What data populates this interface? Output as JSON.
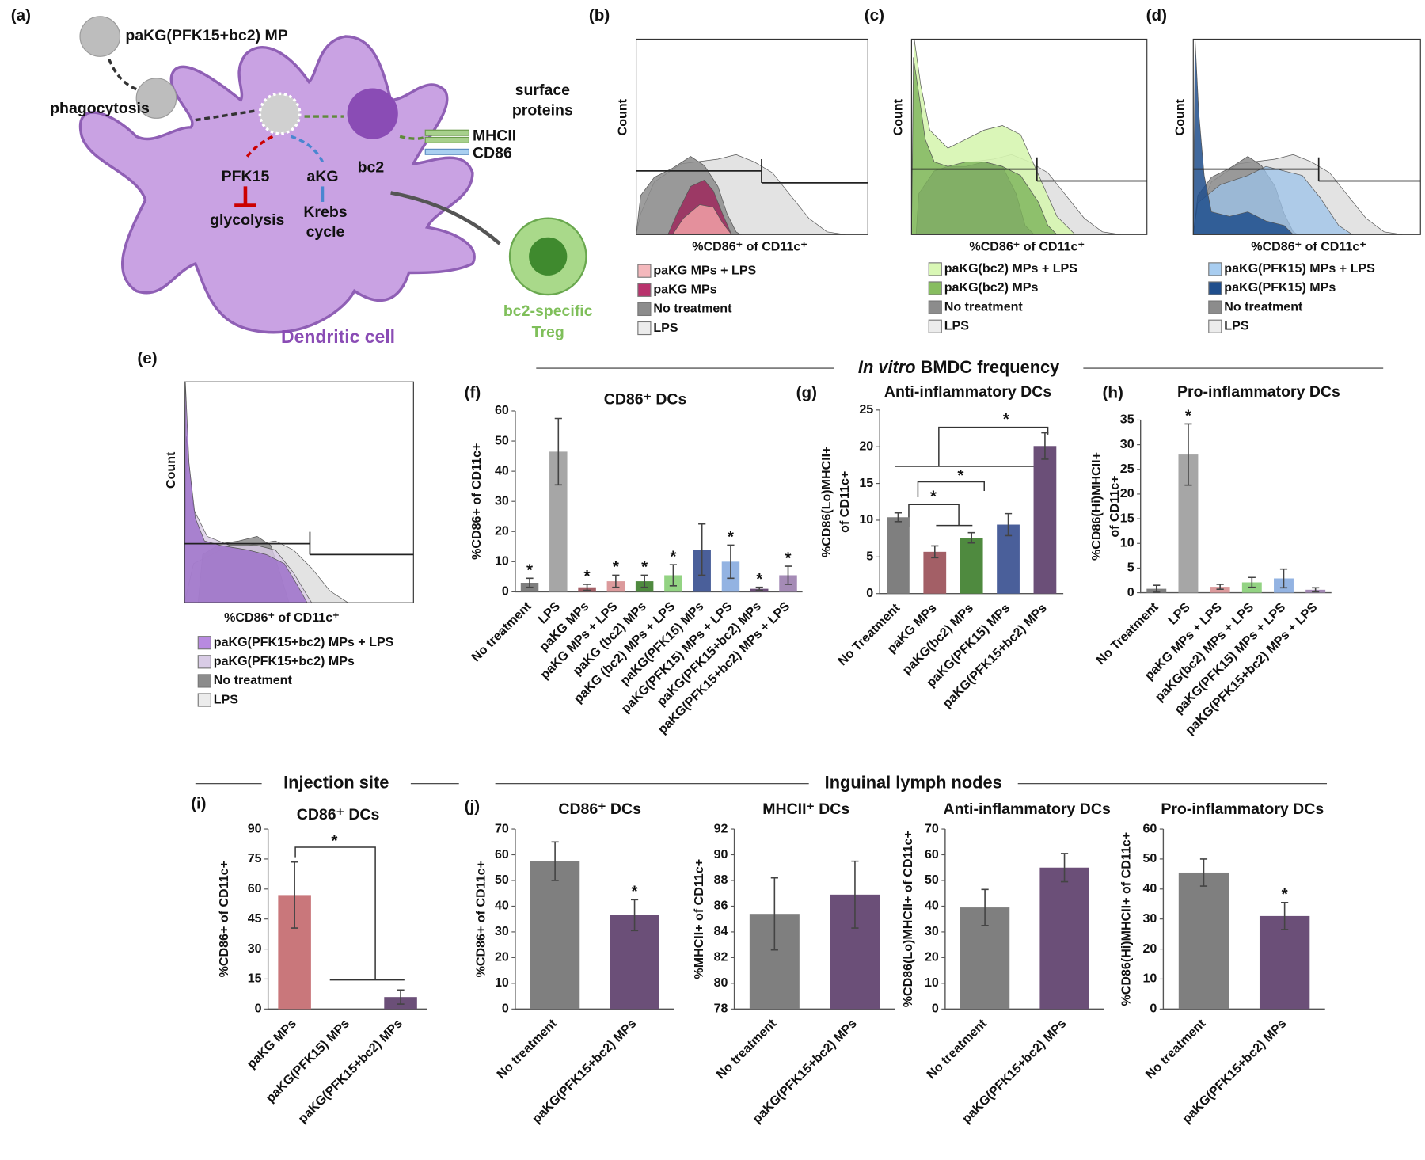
{
  "diagram": {
    "panel_label": "(a)",
    "particle": "paKG(PFK15+bc2) MP",
    "uptake": "phagocytosis",
    "surface": [
      "surface",
      "proteins"
    ],
    "markers": [
      "MHCII",
      "CD86"
    ],
    "cargo": "bc2",
    "inhibitor": "PFK15",
    "metabolite": "aKG",
    "pathway": "glycolysis",
    "cycle": [
      "Krebs",
      "cycle"
    ],
    "treg": [
      "bc2-specific",
      "Treg"
    ],
    "cell": "Dendritic cell"
  },
  "histograms": [
    {
      "panel_label": "(b)",
      "ylabel": "Count",
      "xlabel": "%CD86⁺ of CD11c⁺",
      "legend": [
        "paKG MPs + LPS",
        "paKG MPs",
        "No treatment",
        "LPS"
      ]
    },
    {
      "panel_label": "(c)",
      "ylabel": "Count",
      "xlabel": "%CD86⁺ of CD11c⁺",
      "legend": [
        "paKG(bc2) MPs + LPS",
        "paKG(bc2) MPs",
        "No treatment",
        "LPS"
      ]
    },
    {
      "panel_label": "(d)",
      "ylabel": "Count",
      "xlabel": "%CD86⁺ of CD11c⁺",
      "legend": [
        "paKG(PFK15) MPs + LPS",
        "paKG(PFK15) MPs",
        "No treatment",
        "LPS"
      ]
    },
    {
      "panel_label": "(e)",
      "ylabel": "Count",
      "xlabel": "%CD86⁺ of CD11c⁺",
      "legend": [
        "paKG(PFK15+bc2) MPs + LPS",
        "paKG(PFK15+bc2) MPs",
        "No treatment",
        "LPS"
      ]
    }
  ],
  "headers": {
    "in_vitro": {
      "italic": "In vitro",
      "text": "BMDC frequency"
    },
    "injection_site": "Injection site",
    "lymph_nodes": "Inguinal lymph nodes"
  },
  "chart_data": [
    {
      "type": "bar",
      "panel_label": "(f)",
      "title": "CD86⁺ DCs",
      "ylabel": "%CD86+ of CD11c+",
      "categories": [
        "No treatment",
        "LPS",
        "paKG MPs",
        "paKG MPs + LPS",
        "paKG (bc2) MPs",
        "paKG (bc2) MPs + LPS",
        "paKG(PFK15) MPs",
        "paKG(PFK15) MPs + LPS",
        "paKG(PFK15+bc2) MPs",
        "paKG(PFK15+bc2) MPs + LPS"
      ],
      "values": [
        3,
        46.5,
        1.5,
        3.5,
        3.5,
        5.5,
        14,
        10,
        1,
        5.5
      ],
      "errors": [
        1.5,
        11,
        1,
        2,
        2,
        3.5,
        8.5,
        5.5,
        0.5,
        3
      ],
      "colors": [
        "#7f7f7f",
        "#a6a6a6",
        "#a35f66",
        "#dc9a9c",
        "#4f8a3f",
        "#93d383",
        "#4a5f9a",
        "#93b3e2",
        "#6b4f78",
        "#a58bb6"
      ],
      "markers": [
        "*",
        null,
        "*",
        "*",
        "*",
        "*",
        null,
        "*",
        "*",
        "*"
      ],
      "ylim": [
        0,
        60
      ],
      "yticks": [
        0,
        10,
        20,
        30,
        40,
        50,
        60
      ]
    },
    {
      "type": "bar",
      "panel_label": "(g)",
      "title": "Anti-inflammatory DCs",
      "ylabel": [
        "%CD86(Lo)MHCII+",
        "of CD11c+"
      ],
      "categories": [
        "No Treatment",
        "paKG MPs",
        "paKG(bc2) MPs",
        "paKG(PFK15) MPs",
        "paKG(PFK15+bc2) MPs"
      ],
      "values": [
        10.4,
        5.7,
        7.6,
        9.4,
        20.1
      ],
      "errors": [
        0.6,
        0.8,
        0.7,
        1.5,
        1.8
      ],
      "colors": [
        "#7f7f7f",
        "#a35f66",
        "#4f8a3f",
        "#4a5f9a",
        "#6b4f78"
      ],
      "annotations": [
        "*",
        "*",
        "*"
      ],
      "ylim": [
        0,
        25
      ],
      "yticks": [
        0,
        5,
        10,
        15,
        20,
        25
      ]
    },
    {
      "type": "bar",
      "panel_label": "(h)",
      "title": "Pro-inflammatory DCs",
      "ylabel": [
        "%CD86(Hi)MHCII+",
        "of CD11c+"
      ],
      "categories": [
        "No Treatment",
        "LPS",
        "paKG MPs + LPS",
        "paKG(bc2) MPs + LPS",
        "paKG(PFK15) MPs + LPS",
        "paKG(PFK15+bc2) MPs + LPS"
      ],
      "values": [
        0.8,
        28,
        1.2,
        2.1,
        2.9,
        0.6
      ],
      "errors": [
        0.7,
        6.2,
        0.5,
        1,
        1.9,
        0.4
      ],
      "colors": [
        "#7f7f7f",
        "#a6a6a6",
        "#dc9a9c",
        "#93d383",
        "#93b3e2",
        "#a58bb6"
      ],
      "markers": [
        null,
        "*",
        null,
        null,
        null,
        null
      ],
      "ylim": [
        0,
        35
      ],
      "yticks": [
        0,
        5,
        10,
        15,
        20,
        25,
        30,
        35
      ]
    },
    {
      "type": "bar",
      "panel_label": "(i)",
      "title": "CD86⁺ DCs",
      "ylabel": "%CD86+ of CD11c+",
      "categories": [
        "paKG MPs",
        "paKG(PFK15) MPs",
        "paKG(PFK15+bc2) MPs"
      ],
      "values": [
        57,
        0,
        6
      ],
      "errors": [
        16.5,
        null,
        3.5
      ],
      "colors": [
        "#c9777b",
        "#c9777b",
        "#6b4f78"
      ],
      "annotations": [
        "*"
      ],
      "ylim": [
        0,
        90
      ],
      "yticks": [
        0,
        15,
        30,
        45,
        60,
        75,
        90
      ]
    },
    {
      "type": "bar",
      "panel_label": "(j)",
      "title": "CD86⁺ DCs",
      "ylabel": "%CD86+ of CD11c+",
      "categories": [
        "No treatment",
        "paKG(PFK15+bc2) MPs"
      ],
      "values": [
        57.5,
        36.5
      ],
      "errors": [
        7.5,
        6
      ],
      "colors": [
        "#7f7f7f",
        "#6b4f78"
      ],
      "markers": [
        null,
        "*"
      ],
      "ylim": [
        0,
        70
      ],
      "yticks": [
        0,
        10,
        20,
        30,
        40,
        50,
        60,
        70
      ]
    },
    {
      "type": "bar",
      "title": "MHCII⁺ DCs",
      "ylabel": "%MHCII+ of CD11c+",
      "categories": [
        "No treatment",
        "paKG(PFK15+bc2) MPs"
      ],
      "values": [
        85.4,
        86.9
      ],
      "errors": [
        2.8,
        2.6
      ],
      "colors": [
        "#7f7f7f",
        "#6b4f78"
      ],
      "ylim": [
        78,
        92
      ],
      "yticks": [
        78,
        80,
        82,
        84,
        86,
        88,
        90,
        92
      ]
    },
    {
      "type": "bar",
      "title": "Anti-inflammatory DCs",
      "ylabel": "%CD86(Lo)MHCII+ of CD11c+",
      "categories": [
        "No treatment",
        "paKG(PFK15+bc2) MPs"
      ],
      "values": [
        39.5,
        55
      ],
      "errors": [
        7,
        5.5
      ],
      "colors": [
        "#7f7f7f",
        "#6b4f78"
      ],
      "ylim": [
        0,
        70
      ],
      "yticks": [
        0,
        10,
        20,
        30,
        40,
        50,
        60,
        70
      ]
    },
    {
      "type": "bar",
      "title": "Pro-inflammatory DCs",
      "ylabel": "%CD86(Hi)MHCII+ of CD11c+",
      "categories": [
        "No treatment",
        "paKG(PFK15+bc2) MPs"
      ],
      "values": [
        45.5,
        31
      ],
      "errors": [
        4.5,
        4.5
      ],
      "colors": [
        "#7f7f7f",
        "#6b4f78"
      ],
      "markers": [
        null,
        "*"
      ],
      "ylim": [
        0,
        60
      ],
      "yticks": [
        0,
        10,
        20,
        30,
        40,
        50,
        60
      ]
    }
  ]
}
